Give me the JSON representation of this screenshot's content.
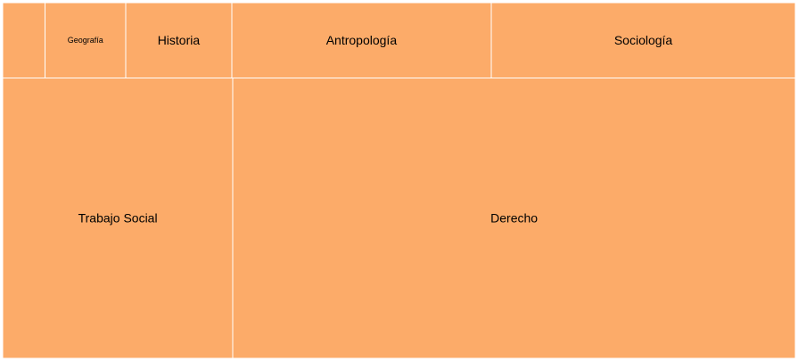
{
  "chart_data": {
    "type": "treemap",
    "title": "",
    "colors": {
      "fill": "#fcab69",
      "border": "#ffffff",
      "label": "#000000"
    },
    "items": [
      {
        "label": "",
        "value": 2.2
      },
      {
        "label": "Geografía",
        "value": 4.2
      },
      {
        "label": "Historia",
        "value": 5.5
      },
      {
        "label": "Antropología",
        "value": 13.5
      },
      {
        "label": "Sociología",
        "value": 15.8
      },
      {
        "label": "Trabajo Social",
        "value": 44.7
      },
      {
        "label": "Derecho",
        "value": 109.2
      }
    ]
  }
}
